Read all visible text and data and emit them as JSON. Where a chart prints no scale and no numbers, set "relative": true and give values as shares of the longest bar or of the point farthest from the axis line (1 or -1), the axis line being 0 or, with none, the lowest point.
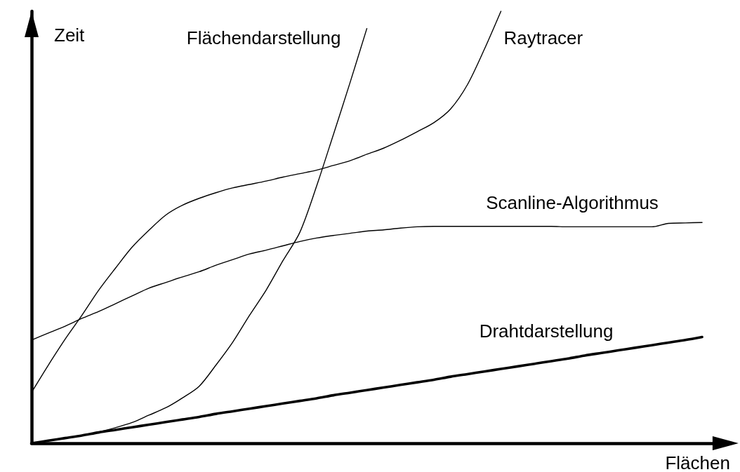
{
  "chart_data": {
    "type": "line",
    "relative": true,
    "xlabel": "Flächen",
    "ylabel": "Zeit",
    "marker": "none",
    "line_style": "solid",
    "categories": [
      null,
      null,
      null,
      null,
      null,
      null,
      null,
      null,
      null,
      null,
      null,
      null,
      null,
      null,
      null,
      null,
      null,
      null,
      null,
      null,
      null,
      null,
      null,
      null,
      null,
      null,
      null,
      null,
      null,
      null,
      null,
      null,
      null,
      null,
      null,
      null,
      null,
      null,
      null,
      null,
      null,
      null
    ],
    "series": [
      {
        "name": "Flächendarstellung",
        "color": "#000000",
        "values": [
          0,
          0.006,
          0.011,
          0.018,
          0.026,
          0.036,
          0.048,
          0.065,
          0.082,
          0.105,
          0.132,
          0.181,
          0.234,
          0.296,
          0.355,
          0.423,
          0.488,
          0.595,
          0.714,
          0.835,
          0.96,
          null,
          null,
          null,
          null,
          null,
          null,
          null,
          null,
          null,
          null,
          null,
          null,
          null,
          null,
          null,
          null,
          null,
          null,
          null,
          null,
          null
        ]
      },
      {
        "name": "Raytracer",
        "color": "#000000",
        "values": [
          0.118,
          0.181,
          0.241,
          0.296,
          0.354,
          0.405,
          0.454,
          0.493,
          0.528,
          0.551,
          0.567,
          0.58,
          0.591,
          0.599,
          0.607,
          0.616,
          0.624,
          0.632,
          0.643,
          0.654,
          0.669,
          0.683,
          0.701,
          0.721,
          0.742,
          0.774,
          0.83,
          0.911,
          1,
          null,
          null,
          null,
          null,
          null,
          null,
          null,
          null,
          null,
          null,
          null,
          null,
          null
        ]
      },
      {
        "name": "Scanline-Algorithmus",
        "color": "#000000",
        "values": [
          0.239,
          0.255,
          0.271,
          0.289,
          0.305,
          0.323,
          0.341,
          0.359,
          0.372,
          0.385,
          0.397,
          0.412,
          0.425,
          0.438,
          0.447,
          0.457,
          0.467,
          0.475,
          0.481,
          0.486,
          0.491,
          0.494,
          0.498,
          0.501,
          0.502,
          0.502,
          0.502,
          0.502,
          0.502,
          0.502,
          0.502,
          0.502,
          0.501,
          0.501,
          0.501,
          0.501,
          0.501,
          0.501,
          0.509,
          0.51,
          0.511,
          null
        ]
      },
      {
        "name": "Drahtdarstellung",
        "color": "#000000",
        "values": [
          0,
          0.006,
          0.012,
          0.018,
          0.025,
          0.031,
          0.037,
          0.043,
          0.049,
          0.055,
          0.061,
          0.068,
          0.074,
          0.08,
          0.086,
          0.092,
          0.098,
          0.104,
          0.111,
          0.117,
          0.123,
          0.129,
          0.135,
          0.141,
          0.147,
          0.154,
          0.16,
          0.166,
          0.172,
          0.178,
          0.184,
          0.19,
          0.196,
          0.203,
          0.209,
          0.215,
          0.221,
          0.227,
          0.233,
          0.239,
          0.246,
          null
        ]
      }
    ]
  }
}
